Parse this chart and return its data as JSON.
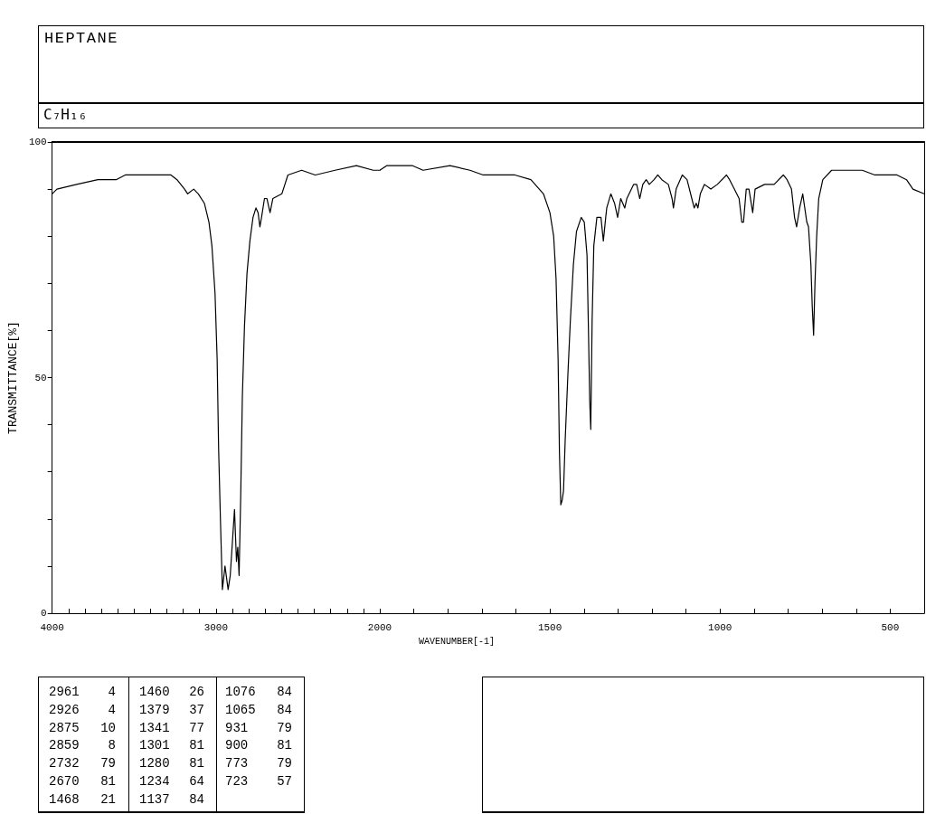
{
  "chart_data": [
    {
      "type": "line",
      "title": "HEPTANE",
      "subtitle": "C₇H₁₆",
      "ylabel": "TRANSMITTANCE[%]",
      "color": "#000000",
      "x": [
        4000,
        3971,
        3851,
        3721,
        3610,
        3554,
        3480,
        3368,
        3275,
        3238,
        3192,
        3173,
        3136,
        3108,
        3071,
        3043,
        3025,
        3006,
        2993,
        2984,
        2973,
        2961,
        2945,
        2926,
        2913,
        2900,
        2887,
        2875,
        2867,
        2859,
        2849,
        2839,
        2826,
        2811,
        2793,
        2774,
        2756,
        2743,
        2732,
        2722,
        2704,
        2689,
        2670,
        2653,
        2598,
        2561,
        2477,
        2394,
        2273,
        2143,
        2040,
        2000
      ],
      "values": [
        89,
        90,
        91,
        92,
        92,
        93,
        93,
        93,
        93,
        92,
        90,
        89,
        90,
        89,
        87,
        83,
        78,
        68,
        54,
        35,
        20,
        5,
        10,
        5,
        8,
        15,
        22,
        11,
        14,
        8,
        25,
        46,
        61,
        72,
        79,
        84,
        86,
        85,
        82,
        84,
        88,
        88,
        85,
        88,
        89,
        93,
        94,
        93,
        94,
        95,
        94,
        94
      ],
      "xlim": [
        4000,
        2000
      ],
      "xticks": [
        4000,
        {
          "value": 3900,
          "label": null
        },
        {
          "value": 3800,
          "label": null
        },
        {
          "value": 3700,
          "label": null
        },
        {
          "value": 3600,
          "label": null
        },
        {
          "value": 3500,
          "label": null
        },
        {
          "value": 3400,
          "label": null
        },
        {
          "value": 3300,
          "label": null
        },
        {
          "value": 3200,
          "label": null
        },
        {
          "value": 3100,
          "label": null
        },
        3000,
        {
          "value": 2900,
          "label": null
        },
        {
          "value": 2800,
          "label": null
        },
        {
          "value": 2700,
          "label": null
        },
        {
          "value": 2600,
          "label": null
        },
        {
          "value": 2500,
          "label": null
        },
        {
          "value": 2400,
          "label": null
        },
        {
          "value": 2300,
          "label": null
        },
        {
          "value": 2200,
          "label": null
        },
        {
          "value": 2100,
          "label": null
        },
        2000
      ],
      "ylim": [
        0,
        100
      ],
      "yticks": [
        0,
        {
          "value": 10,
          "label": null
        },
        {
          "value": 20,
          "label": null
        },
        {
          "value": 30,
          "label": null
        },
        {
          "value": 40,
          "label": null
        },
        50,
        {
          "value": 60,
          "label": null
        },
        {
          "value": 70,
          "label": null
        },
        {
          "value": 80,
          "label": null
        },
        {
          "value": 90,
          "label": null
        },
        100
      ],
      "annotations": [
        "2961 4",
        "2926 4",
        "2875 10",
        "2859 8",
        "2732 79",
        "2670 81",
        "1468 21",
        "1460 26",
        "1379 37",
        "1341 77",
        "1301 81",
        "1280 81",
        "1234 64",
        "1137 84",
        "1076 84",
        "1065 84",
        "931 79",
        "900 81",
        "773 79",
        "723 57"
      ]
    },
    {
      "type": "line",
      "xlabel": "WAVENUMBER[-1]",
      "color": "#000000",
      "x": [
        2000,
        1979,
        1905,
        1873,
        1794,
        1735,
        1696,
        1603,
        1556,
        1519,
        1500,
        1489,
        1482,
        1476,
        1472,
        1468,
        1464,
        1460,
        1455,
        1447,
        1440,
        1431,
        1422,
        1408,
        1399,
        1391,
        1387,
        1383,
        1380,
        1376,
        1371,
        1362,
        1350,
        1343,
        1336,
        1333,
        1321,
        1310,
        1301,
        1292,
        1280,
        1274,
        1254,
        1245,
        1236,
        1227,
        1217,
        1208,
        1194,
        1183,
        1171,
        1152,
        1141,
        1137,
        1129,
        1111,
        1097,
        1083,
        1076,
        1070,
        1065,
        1058,
        1046,
        1027,
        1008,
        981,
        972,
        958,
        944,
        936,
        931,
        923,
        915,
        904,
        897,
        869,
        841,
        814,
        803,
        790,
        781,
        775,
        766,
        757,
        751,
        745,
        740,
        733,
        729,
        725,
        721,
        716,
        710,
        698,
        672,
        635,
        582,
        545,
        508,
        480,
        452,
        433,
        400
      ],
      "values": [
        94,
        95,
        95,
        94,
        95,
        94,
        93,
        93,
        92,
        89,
        85,
        80,
        71,
        54,
        34,
        23,
        24,
        26,
        37,
        51,
        62,
        74,
        81,
        84,
        83,
        76,
        61,
        45,
        39,
        62,
        78,
        84,
        84,
        79,
        84,
        86,
        89,
        87,
        84,
        88,
        86,
        88,
        91,
        91,
        88,
        91,
        92,
        91,
        92,
        93,
        92,
        91,
        88,
        86,
        90,
        93,
        92,
        88,
        86,
        87,
        86,
        89,
        91,
        90,
        91,
        93,
        92,
        90,
        88,
        83,
        83,
        90,
        90,
        85,
        90,
        91,
        91,
        93,
        92,
        90,
        84,
        82,
        86,
        89,
        86,
        83,
        82,
        74,
        65,
        59,
        70,
        80,
        88,
        92,
        94,
        94,
        94,
        93,
        93,
        93,
        92,
        90,
        89
      ],
      "xlim": [
        2000,
        400
      ],
      "xticks": [
        {
          "value": 1900,
          "label": null
        },
        {
          "value": 1800,
          "label": null
        },
        {
          "value": 1700,
          "label": null
        },
        {
          "value": 1600,
          "label": null
        },
        1500,
        {
          "value": 1400,
          "label": null
        },
        {
          "value": 1300,
          "label": null
        },
        {
          "value": 1200,
          "label": null
        },
        {
          "value": 1100,
          "label": null
        },
        1000,
        {
          "value": 900,
          "label": null
        },
        {
          "value": 800,
          "label": null
        },
        {
          "value": 700,
          "label": null
        },
        {
          "value": 600,
          "label": null
        },
        500
      ],
      "ylim": [
        0,
        100
      ],
      "tick_labels": "x"
    }
  ]
}
